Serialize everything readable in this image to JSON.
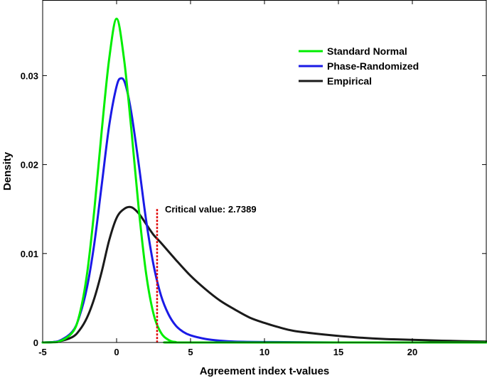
{
  "chart_data": {
    "type": "line",
    "title": "",
    "xlabel": "Agreement index t-values",
    "ylabel": "Density",
    "xlim": [
      -5,
      25
    ],
    "ylim": [
      0,
      0.0385
    ],
    "xticks": [
      -5,
      0,
      5,
      10,
      15,
      20
    ],
    "xtick_labels": [
      "-5",
      "0",
      "5",
      "10",
      "15",
      "20"
    ],
    "yticks": [
      0,
      0.01,
      0.02,
      0.03
    ],
    "ytick_labels": [
      "0",
      "0.01",
      "0.02",
      "0.03"
    ],
    "grid": false,
    "legend_position": "top-right",
    "series": [
      {
        "name": "Standard Normal",
        "color": "#00ee00",
        "x": [
          -5,
          -4,
          -3,
          -2.5,
          -2,
          -1.5,
          -1,
          -0.5,
          0,
          0.5,
          1,
          1.5,
          2,
          2.5,
          3,
          3.5,
          4,
          5,
          25
        ],
        "y": [
          0,
          5e-05,
          0.0011,
          0.0032,
          0.0077,
          0.015,
          0.0239,
          0.0319,
          0.0364,
          0.0319,
          0.0239,
          0.015,
          0.0077,
          0.0032,
          0.0011,
          0.0003,
          5e-05,
          0,
          0
        ]
      },
      {
        "name": "Phase-Randomized",
        "color": "#1a1ae6",
        "x": [
          -5,
          -4,
          -3,
          -2.5,
          -2,
          -1.5,
          -1,
          -0.5,
          0,
          0.3,
          0.6,
          1,
          1.5,
          2,
          2.5,
          3,
          3.5,
          4,
          4.5,
          5,
          6,
          7,
          8,
          10,
          15,
          25
        ],
        "y": [
          0,
          0.0001,
          0.0012,
          0.003,
          0.0062,
          0.0112,
          0.0178,
          0.0244,
          0.0288,
          0.0297,
          0.029,
          0.0258,
          0.02,
          0.0137,
          0.0087,
          0.0053,
          0.0032,
          0.0019,
          0.0012,
          0.0008,
          0.0004,
          0.0002,
          0.0001,
          5e-05,
          0,
          0
        ]
      },
      {
        "name": "Empirical",
        "color": "#1a1a1a",
        "x": [
          -5,
          -4,
          -3,
          -2.5,
          -2,
          -1.5,
          -1,
          -0.5,
          0,
          0.5,
          1,
          1.5,
          2,
          2.5,
          3,
          4,
          5,
          6,
          7,
          8,
          9,
          10,
          11,
          12,
          14,
          16,
          18,
          20,
          22,
          25
        ],
        "y": [
          0,
          0.0001,
          0.0006,
          0.0014,
          0.0028,
          0.005,
          0.008,
          0.0115,
          0.014,
          0.015,
          0.0152,
          0.0145,
          0.0133,
          0.0121,
          0.0112,
          0.0093,
          0.0075,
          0.006,
          0.0047,
          0.0037,
          0.0028,
          0.0022,
          0.0017,
          0.0013,
          0.0009,
          0.0006,
          0.0004,
          0.0003,
          0.0002,
          0.0001
        ]
      }
    ],
    "annotations": [
      {
        "text": "Critical value: 2.7389",
        "x": 2.7389,
        "y_top": 0.015,
        "color": "#e00000"
      }
    ]
  }
}
